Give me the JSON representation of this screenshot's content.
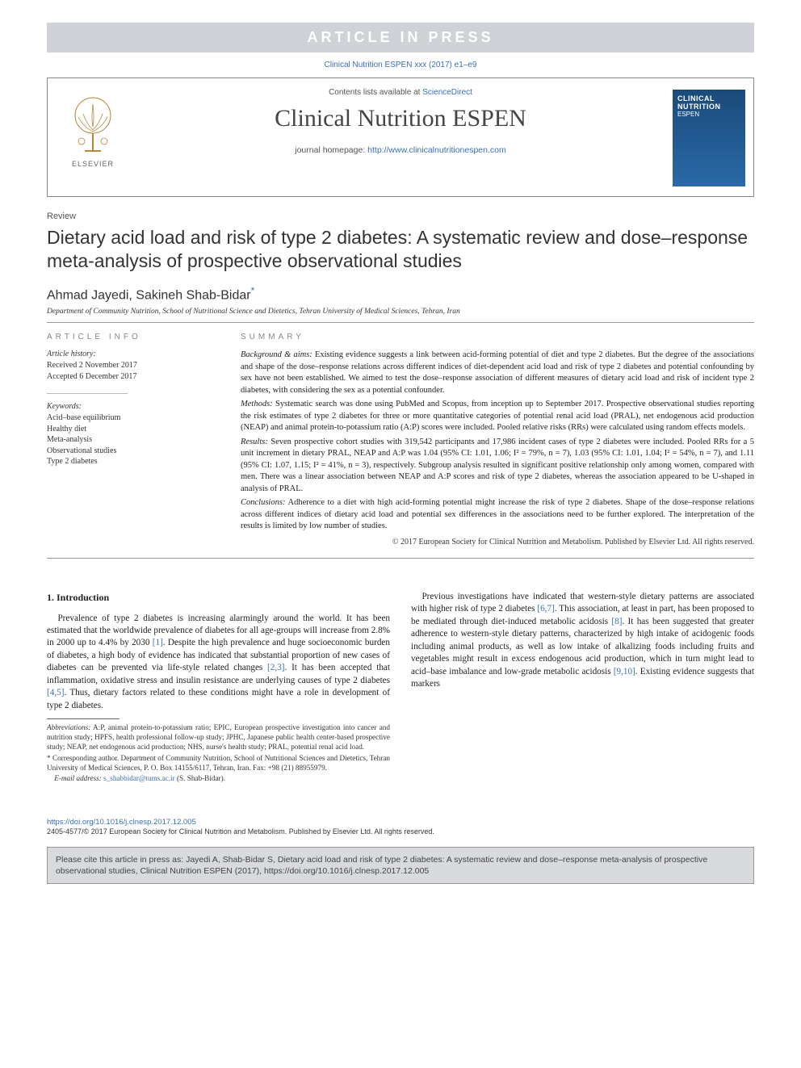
{
  "banner": "ARTICLE IN PRESS",
  "cite_top": "Clinical Nutrition ESPEN xxx (2017) e1–e9",
  "head": {
    "contents_pre": "Contents lists available at ",
    "contents_link": "ScienceDirect",
    "journal": "Clinical Nutrition ESPEN",
    "home_pre": "journal homepage: ",
    "home_url": "http://www.clinicalnutritionespen.com",
    "elsevier": "ELSEVIER",
    "cover_line1": "CLINICAL",
    "cover_line2": "NUTRITION",
    "cover_line3": "ESPEN"
  },
  "review_label": "Review",
  "title": "Dietary acid load and risk of type 2 diabetes: A systematic review and dose–response meta-analysis of prospective observational studies",
  "authors": "Ahmad Jayedi, Sakineh Shab-Bidar",
  "affil": "Department of Community Nutrition, School of Nutritional Science and Dietetics, Tehran University of Medical Sciences, Tehran, Iran",
  "info": {
    "h": "ARTICLE INFO",
    "hist_h": "Article history:",
    "hist1": "Received 2 November 2017",
    "hist2": "Accepted 6 December 2017",
    "kw_h": "Keywords:",
    "kws": [
      "Acid–base equilibrium",
      "Healthy diet",
      "Meta-analysis",
      "Observational studies",
      "Type 2 diabetes"
    ]
  },
  "sum": {
    "h": "SUMMARY",
    "bg_h": "Background & aims:",
    "bg": " Existing evidence suggests a link between acid-forming potential of diet and type 2 diabetes. But the degree of the associations and shape of the dose–response relations across different indices of diet-dependent acid load and risk of type 2 diabetes and potential confounding by sex have not been established. We aimed to test the dose–response association of different measures of dietary acid load and risk of incident type 2 diabetes, with considering the sex as a potential confounder.",
    "mt_h": "Methods:",
    "mt": " Systematic search was done using PubMed and Scopus, from inception up to September 2017. Prospective observational studies reporting the risk estimates of type 2 diabetes for three or more quantitative categories of potential renal acid load (PRAL), net endogenous acid production (NEAP) and animal protein-to-potassium ratio (A:P) scores were included. Pooled relative risks (RRs) were calculated using random effects models.",
    "rs_h": "Results:",
    "rs": " Seven prospective cohort studies with 319,542 participants and 17,986 incident cases of type 2 diabetes were included. Pooled RRs for a 5 unit increment in dietary PRAL, NEAP and A:P was 1.04 (95% CI: 1.01, 1.06; I² = 79%, n = 7), 1.03 (95% CI: 1.01, 1.04; I² = 54%, n = 7), and 1.11 (95% CI: 1.07, 1.15; I² = 41%, n = 3), respectively. Subgroup analysis resulted in significant positive relationship only among women, compared with men. There was a linear association between NEAP and A:P scores and risk of type 2 diabetes, whereas the association appeared to be U-shaped in analysis of PRAL.",
    "cn_h": "Conclusions:",
    "cn": " Adherence to a diet with high acid-forming potential might increase the risk of type 2 diabetes. Shape of the dose–response relations across different indices of dietary acid load and potential sex differences in the associations need to be further explored. The interpretation of the results is limited by low number of studies.",
    "cp": "© 2017 European Society for Clinical Nutrition and Metabolism. Published by Elsevier Ltd. All rights reserved."
  },
  "body": {
    "h1": "1. Introduction",
    "p1a": "Prevalence of type 2 diabetes is increasing alarmingly around the world. It has been estimated that the worldwide prevalence of diabetes for all age-groups will increase from 2.8% in 2000 up to 4.4% by 2030 ",
    "p1b": ". Despite the high prevalence and huge socioeconomic burden of diabetes, a high body of evidence has indicated that substantial proportion of new cases of diabetes can be prevented via life-style related changes ",
    "p1c": ". It has been accepted that inflammation, oxidative stress and insulin resistance are underlying causes of type 2 diabetes ",
    "p1d": ". Thus, dietary factors related to these conditions might have a role in development of type 2 diabetes.",
    "p2a": "Previous investigations have indicated that western-style dietary patterns are associated with higher risk of type 2 diabetes ",
    "p2b": ". This association, at least in part, has been proposed to be mediated through diet-induced metabolic acidosis ",
    "p2c": ". It has been suggested that greater adherence to western-style dietary patterns, characterized by high intake of acidogenic foods including animal products, as well as low intake of alkalizing foods including fruits and vegetables might result in excess endogenous acid production, which in turn might lead to acid–base imbalance and low-grade metabolic acidosis ",
    "p2d": ". Existing evidence suggests that markers",
    "r1": "[1]",
    "r23": "[2,3]",
    "r45": "[4,5]",
    "r67": "[6,7]",
    "r8": "[8]",
    "r910": "[9,10]"
  },
  "fn": {
    "abbr_h": "Abbreviations:",
    "abbr": " A:P, animal protein-to-potassium ratio; EPIC, European prospective investigation into cancer and nutrition study; HPFS, health professional follow-up study; JPHC, Japanese public health center-based prospective study; NEAP, net endogenous acid production; NHS, nurse's health study; PRAL, potential renal acid load.",
    "corr": "* Corresponding author. Department of Community Nutrition, School of Nutritional Sciences and Dietetics, Tehran University of Medical Sciences, P. O. Box 14155/6117, Tehran, Iran. Fax: +98 (21) 88955979.",
    "email_h": "E-mail address:",
    "email": "s_shabbidar@tums.ac.ir",
    "email_who": " (S. Shab-Bidar)."
  },
  "doi": {
    "url": "https://doi.org/10.1016/j.clnesp.2017.12.005",
    "rights": "2405-4577/© 2017 European Society for Clinical Nutrition and Metabolism. Published by Elsevier Ltd. All rights reserved."
  },
  "cite_box": "Please cite this article in press as: Jayedi A, Shab-Bidar S, Dietary acid load and risk of type 2 diabetes: A systematic review and dose–response meta-analysis of prospective observational studies, Clinical Nutrition ESPEN (2017), https://doi.org/10.1016/j.clnesp.2017.12.005",
  "colors": {
    "link": "#3b6fb6",
    "banner_bg": "#cfd2d6",
    "citebox_bg": "#d8dadd"
  }
}
